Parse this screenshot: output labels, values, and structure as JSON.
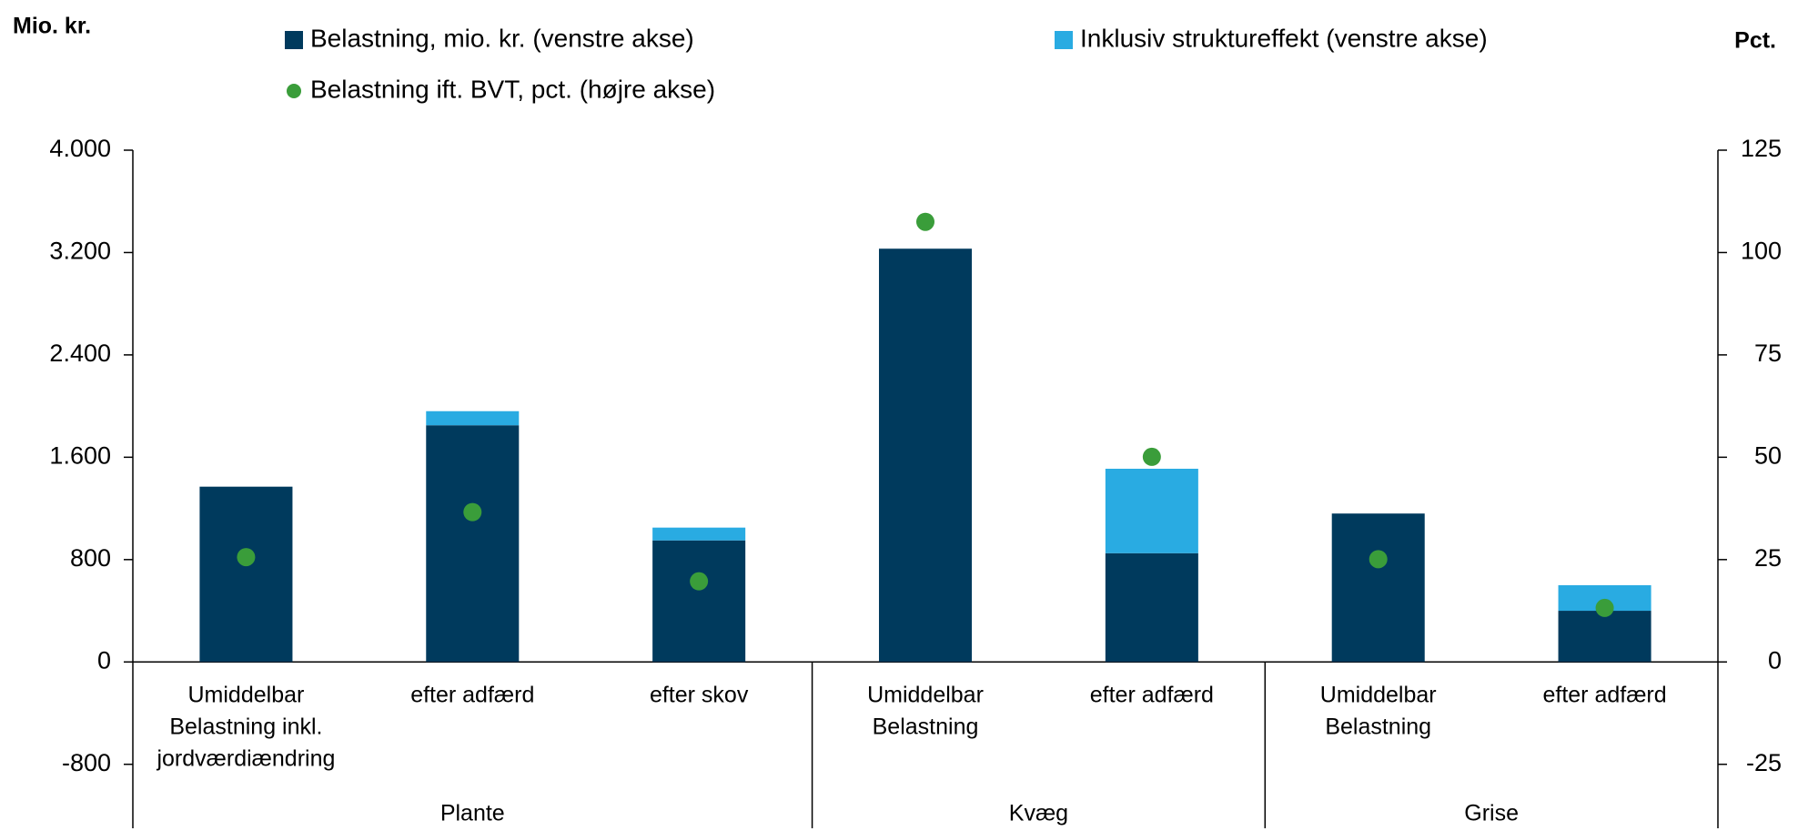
{
  "chart_data": {
    "type": "bar",
    "y_label": "Mio. kr.",
    "y2_label": "Pct.",
    "groups": [
      {
        "name": "Plante",
        "categories": [
          [
            "Umiddelbar",
            "Belastning inkl.",
            "jordværdiændring"
          ],
          [
            "efter adfærd"
          ],
          [
            "efter skov"
          ]
        ]
      },
      {
        "name": "Kvæg",
        "categories": [
          [
            "Umiddelbar",
            "Belastning"
          ],
          [
            "efter adfærd"
          ]
        ]
      },
      {
        "name": "Grise",
        "categories": [
          [
            "Umiddelbar",
            "Belastning"
          ],
          [
            "efter adfærd"
          ]
        ]
      }
    ],
    "series": [
      {
        "name": "Belastning, mio. kr. (venstre akse)",
        "color": "#003a5d",
        "type": "bar",
        "values": [
          1370,
          1850,
          950,
          3230,
          850,
          1160,
          400
        ]
      },
      {
        "name": "Inklusiv struktureffekt (venstre akse)",
        "color": "#29abe2",
        "type": "bar",
        "values": [
          null,
          110,
          100,
          null,
          660,
          null,
          200
        ]
      },
      {
        "name": "Belastning ift. BVT, pct. (højre akse)",
        "color": "#3a9d3a",
        "type": "scatter",
        "axis": "y2",
        "values": [
          25.6,
          36.6,
          19.7,
          107.5,
          50.1,
          25.1,
          13.2
        ]
      }
    ],
    "ylim": [
      -1300,
      4000
    ],
    "yticks": [
      -800,
      0,
      800,
      {
        "value": 1600,
        "label": "1.600"
      },
      {
        "value": 2400,
        "label": "2.400"
      },
      {
        "value": 3200,
        "label": "3.200"
      },
      {
        "value": 4000,
        "label": "4.000"
      }
    ],
    "y2lim": [
      -40.625,
      125
    ],
    "y2ticks": [
      -25,
      0,
      25,
      50,
      75,
      100,
      125
    ]
  }
}
